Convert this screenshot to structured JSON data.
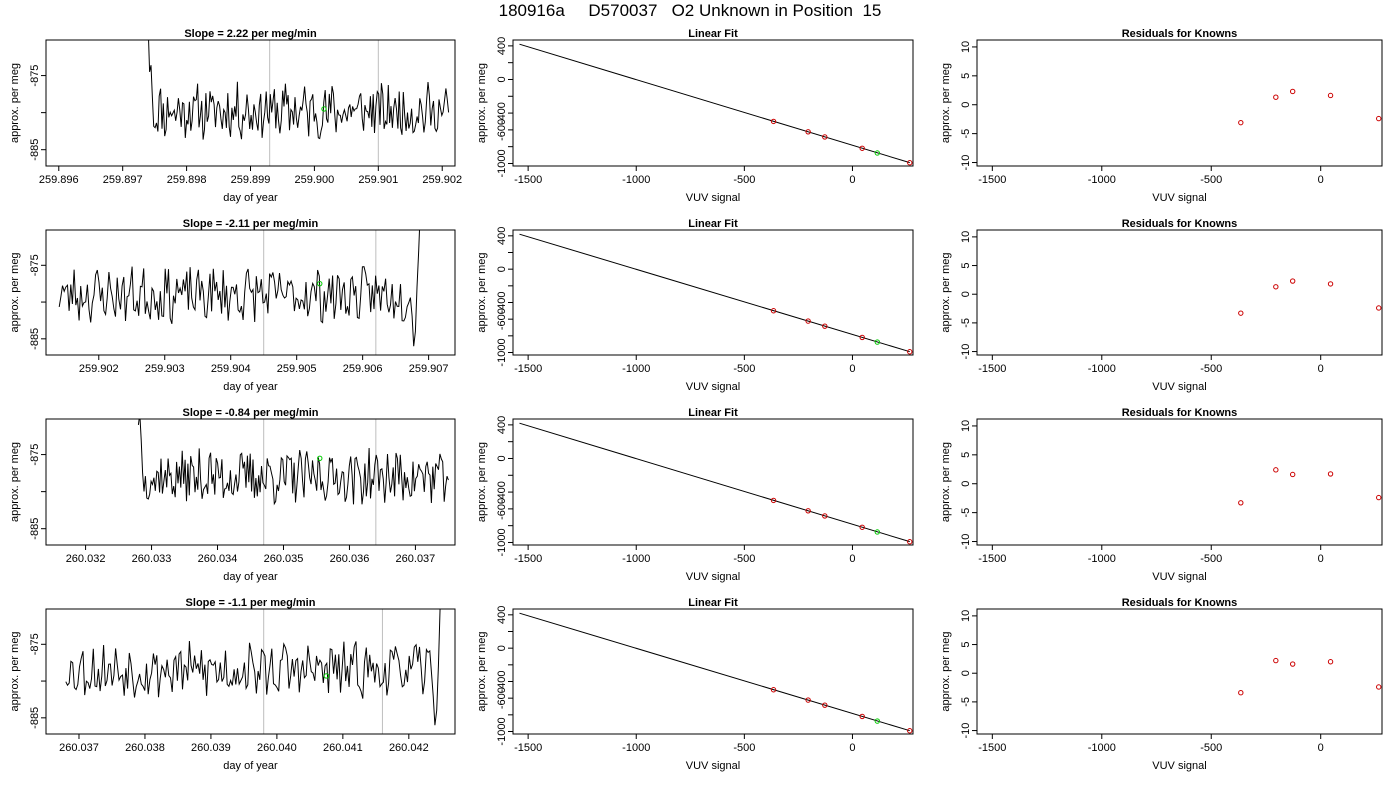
{
  "title": "180916a     D570037   O2 Unknown in Position  15",
  "colors": {
    "line": "#000000",
    "known": "#cc0000",
    "unknown": "#00cc00",
    "window": "#bebebe"
  },
  "chart_data": [
    {
      "type": "line",
      "row": 0,
      "col": 0,
      "title": "Slope =  2.22  per meg/min",
      "xlabel": "day of year",
      "ylabel": "approx. per meg",
      "xlim": [
        259.8958,
        259.9022
      ],
      "ylim": [
        -887.2,
        -870.2
      ],
      "xticks": [
        259.896,
        259.897,
        259.898,
        259.899,
        259.9,
        259.901,
        259.902
      ],
      "xtick_labels": [
        "259.896",
        "259.897",
        "259.898",
        "259.899",
        "259.900",
        "259.901",
        "259.902"
      ],
      "yticks": [
        -885,
        -880,
        -875
      ],
      "ytick_labels": [
        "-885",
        "",
        "-875"
      ],
      "windows": [
        259.8993,
        259.901
      ],
      "start": 259.8974,
      "end": 259.9021,
      "head": [
        -869,
        -874.5,
        -873.6,
        -878.0
      ],
      "level": -879.8,
      "unknown_point": {
        "x": 259.90015,
        "y": -879.5
      },
      "seed": 11
    },
    {
      "type": "line",
      "row": 0,
      "col": 1,
      "title": "Linear Fit",
      "xlabel": "VUV signal",
      "ylabel": "approx. per meg",
      "xlim": [
        -1570,
        280
      ],
      "ylim": [
        -1030,
        470
      ],
      "xticks": [
        -1500,
        -1000,
        -500,
        0
      ],
      "xtick_labels": [
        "-1500",
        "-1000",
        "-500",
        "0"
      ],
      "yticks": [
        -1000,
        -800,
        -600,
        -400,
        -200,
        0,
        200,
        400
      ],
      "ytick_labels": [
        "-1000",
        "",
        "-600",
        "-400",
        "",
        "0",
        "",
        "400"
      ],
      "fit_line": {
        "x": [
          -1540,
          265
        ],
        "y": [
          420,
          -990
        ]
      },
      "knowns": [
        {
          "x": -365,
          "y": -499
        },
        {
          "x": -205,
          "y": -623
        },
        {
          "x": -128,
          "y": -684
        },
        {
          "x": 45,
          "y": -819
        },
        {
          "x": 265,
          "y": -991
        }
      ],
      "unknown": {
        "x": 115,
        "y": -875
      }
    },
    {
      "type": "scatter",
      "row": 0,
      "col": 2,
      "title": "Residuals for Knowns",
      "xlabel": "VUV signal",
      "ylabel": "approx. per meg",
      "xlim": [
        -1570,
        280
      ],
      "ylim": [
        -10.6,
        11.2
      ],
      "xticks": [
        -1500,
        -1000,
        -500,
        0
      ],
      "xtick_labels": [
        "-1500",
        "-1000",
        "-500",
        "0"
      ],
      "yticks": [
        -10,
        -5,
        0,
        5,
        10
      ],
      "ytick_labels": [
        "-10",
        "-5",
        "0",
        "5",
        "10"
      ],
      "points": [
        {
          "x": -365,
          "y": -3.1
        },
        {
          "x": -205,
          "y": 1.3
        },
        {
          "x": -128,
          "y": 2.3
        },
        {
          "x": 45,
          "y": 1.6
        },
        {
          "x": 265,
          "y": -2.4
        }
      ]
    },
    {
      "type": "line",
      "row": 1,
      "col": 0,
      "title": "Slope =  -2.11  per meg/min",
      "xlabel": "day of year",
      "ylabel": "approx. per meg",
      "xlim": [
        259.9012,
        259.9074
      ],
      "ylim": [
        -887.2,
        -870.2
      ],
      "xticks": [
        259.902,
        259.903,
        259.904,
        259.905,
        259.906,
        259.907
      ],
      "xtick_labels": [
        "259.902",
        "259.903",
        "259.904",
        "259.905",
        "259.906",
        "259.907"
      ],
      "yticks": [
        -885,
        -880,
        -875
      ],
      "ytick_labels": [
        "-885",
        "",
        "-875"
      ],
      "windows": [
        259.9045,
        259.9062
      ],
      "start": 259.9014,
      "end": 259.9069,
      "tail": [
        -886.0,
        -884.0,
        -878.0,
        -873.0,
        -867.0,
        -862.0
      ],
      "level": -879.0,
      "unknown_point": {
        "x": 259.90535,
        "y": -877.5
      },
      "seed": 23
    },
    {
      "type": "line",
      "row": 1,
      "col": 1,
      "title": "Linear Fit",
      "xlabel": "VUV signal",
      "ylabel": "approx. per meg",
      "xlim": [
        -1570,
        280
      ],
      "ylim": [
        -1030,
        470
      ],
      "xticks": [
        -1500,
        -1000,
        -500,
        0
      ],
      "xtick_labels": [
        "-1500",
        "-1000",
        "-500",
        "0"
      ],
      "yticks": [
        -1000,
        -800,
        -600,
        -400,
        -200,
        0,
        200,
        400
      ],
      "ytick_labels": [
        "-1000",
        "",
        "-600",
        "-400",
        "",
        "0",
        "",
        "400"
      ],
      "fit_line": {
        "x": [
          -1540,
          265
        ],
        "y": [
          420,
          -990
        ]
      },
      "knowns": [
        {
          "x": -365,
          "y": -499
        },
        {
          "x": -205,
          "y": -623
        },
        {
          "x": -128,
          "y": -684
        },
        {
          "x": 45,
          "y": -819
        },
        {
          "x": 265,
          "y": -991
        }
      ],
      "unknown": {
        "x": 115,
        "y": -875
      }
    },
    {
      "type": "scatter",
      "row": 1,
      "col": 2,
      "title": "Residuals for Knowns",
      "xlabel": "VUV signal",
      "ylabel": "approx. per meg",
      "xlim": [
        -1570,
        280
      ],
      "ylim": [
        -10.6,
        11.2
      ],
      "xticks": [
        -1500,
        -1000,
        -500,
        0
      ],
      "xtick_labels": [
        "-1500",
        "-1000",
        "-500",
        "0"
      ],
      "yticks": [
        -10,
        -5,
        0,
        5,
        10
      ],
      "ytick_labels": [
        "-10",
        "-5",
        "0",
        "5",
        "10"
      ],
      "points": [
        {
          "x": -365,
          "y": -3.3
        },
        {
          "x": -205,
          "y": 1.3
        },
        {
          "x": -128,
          "y": 2.3
        },
        {
          "x": 45,
          "y": 1.8
        },
        {
          "x": 265,
          "y": -2.4
        }
      ]
    },
    {
      "type": "line",
      "row": 2,
      "col": 0,
      "title": "Slope =  -0.84  per meg/min",
      "xlabel": "day of year",
      "ylabel": "approx. per meg",
      "xlim": [
        260.0314,
        260.0376
      ],
      "ylim": [
        -887.2,
        -870.2
      ],
      "xticks": [
        260.032,
        260.033,
        260.034,
        260.035,
        260.036,
        260.037
      ],
      "xtick_labels": [
        "260.032",
        "260.033",
        "260.034",
        "260.035",
        "260.036",
        "260.037"
      ],
      "yticks": [
        -885,
        -880,
        -875
      ],
      "ytick_labels": [
        "-885",
        "",
        "-875"
      ],
      "windows": [
        260.0347,
        260.0364
      ],
      "start": 260.0328,
      "end": 260.0375,
      "head": [
        -871.0,
        -869.5,
        -873.0,
        -877.5
      ],
      "level": -878.0,
      "unknown_point": {
        "x": 260.03555,
        "y": -875.5
      },
      "seed": 37
    },
    {
      "type": "line",
      "row": 2,
      "col": 1,
      "title": "Linear Fit",
      "xlabel": "VUV signal",
      "ylabel": "approx. per meg",
      "xlim": [
        -1570,
        280
      ],
      "ylim": [
        -1030,
        470
      ],
      "xticks": [
        -1500,
        -1000,
        -500,
        0
      ],
      "xtick_labels": [
        "-1500",
        "-1000",
        "-500",
        "0"
      ],
      "yticks": [
        -1000,
        -800,
        -600,
        -400,
        -200,
        0,
        200,
        400
      ],
      "ytick_labels": [
        "-1000",
        "",
        "-600",
        "-400",
        "",
        "0",
        "",
        "400"
      ],
      "fit_line": {
        "x": [
          -1540,
          265
        ],
        "y": [
          420,
          -990
        ]
      },
      "knowns": [
        {
          "x": -365,
          "y": -499
        },
        {
          "x": -205,
          "y": -623
        },
        {
          "x": -128,
          "y": -684
        },
        {
          "x": 45,
          "y": -819
        },
        {
          "x": 265,
          "y": -991
        }
      ],
      "unknown": {
        "x": 115,
        "y": -875
      }
    },
    {
      "type": "scatter",
      "row": 2,
      "col": 2,
      "title": "Residuals for Knowns",
      "xlabel": "VUV signal",
      "ylabel": "approx. per meg",
      "xlim": [
        -1570,
        280
      ],
      "ylim": [
        -10.6,
        11.2
      ],
      "xticks": [
        -1500,
        -1000,
        -500,
        0
      ],
      "xtick_labels": [
        "-1500",
        "-1000",
        "-500",
        "0"
      ],
      "yticks": [
        -10,
        -5,
        0,
        5,
        10
      ],
      "ytick_labels": [
        "-10",
        "-5",
        "0",
        "5",
        "10"
      ],
      "points": [
        {
          "x": -365,
          "y": -3.3
        },
        {
          "x": -205,
          "y": 2.4
        },
        {
          "x": -128,
          "y": 1.6
        },
        {
          "x": 45,
          "y": 1.7
        },
        {
          "x": 265,
          "y": -2.4
        }
      ]
    },
    {
      "type": "line",
      "row": 3,
      "col": 0,
      "title": "Slope =  -1.1  per meg/min",
      "xlabel": "day of year",
      "ylabel": "approx. per meg",
      "xlim": [
        260.0365,
        260.0427
      ],
      "ylim": [
        -887.2,
        -870.2
      ],
      "xticks": [
        260.037,
        260.038,
        260.039,
        260.04,
        260.041,
        260.042
      ],
      "xtick_labels": [
        "260.037",
        "260.038",
        "260.039",
        "260.040",
        "260.041",
        "260.042"
      ],
      "yticks": [
        -885,
        -880,
        -875
      ],
      "ytick_labels": [
        "-885",
        "",
        "-875"
      ],
      "windows": [
        260.0398,
        260.0416
      ],
      "start": 260.0368,
      "end": 260.0425,
      "tail": [
        -882.0,
        -886.0,
        -884.0,
        -878.0,
        -870.0,
        -864.0
      ],
      "level": -878.5,
      "unknown_point": {
        "x": 260.04075,
        "y": -879.3
      },
      "seed": 53
    },
    {
      "type": "line",
      "row": 3,
      "col": 1,
      "title": "Linear Fit",
      "xlabel": "VUV signal",
      "ylabel": "approx. per meg",
      "xlim": [
        -1570,
        280
      ],
      "ylim": [
        -1030,
        470
      ],
      "xticks": [
        -1500,
        -1000,
        -500,
        0
      ],
      "xtick_labels": [
        "-1500",
        "-1000",
        "-500",
        "0"
      ],
      "yticks": [
        -1000,
        -800,
        -600,
        -400,
        -200,
        0,
        200,
        400
      ],
      "ytick_labels": [
        "-1000",
        "",
        "-600",
        "-400",
        "",
        "0",
        "",
        "400"
      ],
      "fit_line": {
        "x": [
          -1540,
          265
        ],
        "y": [
          420,
          -990
        ]
      },
      "knowns": [
        {
          "x": -365,
          "y": -499
        },
        {
          "x": -205,
          "y": -623
        },
        {
          "x": -128,
          "y": -684
        },
        {
          "x": 45,
          "y": -819
        },
        {
          "x": 265,
          "y": -991
        }
      ],
      "unknown": {
        "x": 115,
        "y": -875
      }
    },
    {
      "type": "scatter",
      "row": 3,
      "col": 2,
      "title": "Residuals for Knowns",
      "xlabel": "VUV signal",
      "ylabel": "approx. per meg",
      "xlim": [
        -1570,
        280
      ],
      "ylim": [
        -10.6,
        11.2
      ],
      "xticks": [
        -1500,
        -1000,
        -500,
        0
      ],
      "xtick_labels": [
        "-1500",
        "-1000",
        "-500",
        "0"
      ],
      "yticks": [
        -10,
        -5,
        0,
        5,
        10
      ],
      "ytick_labels": [
        "-10",
        "-5",
        "0",
        "5",
        "10"
      ],
      "points": [
        {
          "x": -365,
          "y": -3.4
        },
        {
          "x": -205,
          "y": 2.2
        },
        {
          "x": -128,
          "y": 1.6
        },
        {
          "x": 45,
          "y": 2.0
        },
        {
          "x": 265,
          "y": -2.4
        }
      ]
    }
  ]
}
